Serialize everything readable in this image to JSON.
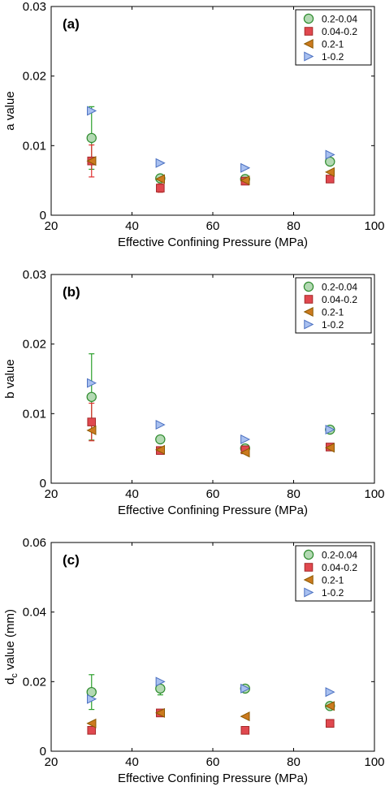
{
  "legend_items": [
    "0.2-0.04",
    "0.04-0.2",
    "0.2-1",
    "1-0.2"
  ],
  "series_styles": [
    {
      "marker": "circle",
      "fill": "#b3d9b3",
      "stroke": "#2e8b2e",
      "error_color": "#2ca02c"
    },
    {
      "marker": "square",
      "fill": "#e0484f",
      "stroke": "#a52a2a",
      "error_color": "#e03030"
    },
    {
      "marker": "triangle-left",
      "fill": "#cc7a1f",
      "stroke": "#8b5a00",
      "error_color": "#cc7a1f"
    },
    {
      "marker": "triangle-right",
      "fill": "#a8c0f0",
      "stroke": "#4a6fc0",
      "error_color": "#4a6fc0"
    }
  ],
  "chart_data": [
    {
      "type": "scatter",
      "panel_label": "(a)",
      "xlabel": "Effective Confining Pressure (MPa)",
      "ylabel": "a value",
      "xlim": [
        20,
        100
      ],
      "ylim": [
        0,
        0.03
      ],
      "xticks": [
        "20",
        "40",
        "60",
        "80",
        "100"
      ],
      "yticks": [
        "0",
        "0.01",
        "0.02",
        "0.03"
      ],
      "legend_position": "top-right",
      "series": [
        {
          "name": "0.2-0.04",
          "x": [
            30,
            47,
            68,
            89
          ],
          "y": [
            0.0111,
            0.0053,
            0.0052,
            0.0077
          ],
          "err": [
            0.0045,
            0,
            0,
            0
          ]
        },
        {
          "name": "0.04-0.2",
          "x": [
            30,
            47,
            68,
            89
          ],
          "y": [
            0.0078,
            0.0039,
            0.0049,
            0.0052
          ],
          "err": [
            0.0023,
            0.0006,
            0,
            0
          ]
        },
        {
          "name": "0.2-1",
          "x": [
            30,
            47,
            68,
            89
          ],
          "y": [
            0.0078,
            0.0052,
            0.005,
            0.0062
          ],
          "err": [
            0,
            0,
            0,
            0
          ]
        },
        {
          "name": "1-0.2",
          "x": [
            30,
            47,
            68,
            89
          ],
          "y": [
            0.015,
            0.0075,
            0.0068,
            0.0087
          ],
          "err": [
            0,
            0,
            0,
            0
          ]
        }
      ]
    },
    {
      "type": "scatter",
      "panel_label": "(b)",
      "xlabel": "Effective Confining Pressure (MPa)",
      "ylabel": "b value",
      "xlim": [
        20,
        100
      ],
      "ylim": [
        0,
        0.03
      ],
      "xticks": [
        "20",
        "40",
        "60",
        "80",
        "100"
      ],
      "yticks": [
        "0",
        "0.01",
        "0.02",
        "0.03"
      ],
      "legend_position": "top-right",
      "series": [
        {
          "name": "0.2-0.04",
          "x": [
            30,
            47,
            68,
            89
          ],
          "y": [
            0.0124,
            0.0063,
            0.005,
            0.0077
          ],
          "err": [
            0.0062,
            0,
            0,
            0
          ]
        },
        {
          "name": "0.04-0.2",
          "x": [
            30,
            47,
            68,
            89
          ],
          "y": [
            0.0088,
            0.0047,
            0.0048,
            0.0052
          ],
          "err": [
            0.0027,
            0,
            0,
            0
          ]
        },
        {
          "name": "0.2-1",
          "x": [
            30,
            47,
            68,
            89
          ],
          "y": [
            0.0076,
            0.0048,
            0.0044,
            0.0051
          ],
          "err": [
            0,
            0,
            0,
            0
          ]
        },
        {
          "name": "1-0.2",
          "x": [
            30,
            47,
            68,
            89
          ],
          "y": [
            0.0144,
            0.0084,
            0.0063,
            0.0077
          ],
          "err": [
            0,
            0,
            0,
            0
          ]
        }
      ]
    },
    {
      "type": "scatter",
      "panel_label": "(c)",
      "xlabel": "Effective Confining Pressure (MPa)",
      "ylabel": "d",
      "ylabel_sub": "c",
      "ylabel_rest": " value (mm)",
      "xlim": [
        20,
        100
      ],
      "ylim": [
        0,
        0.06
      ],
      "xticks": [
        "20",
        "40",
        "60",
        "80",
        "100"
      ],
      "yticks": [
        "0",
        "0.02",
        "0.04",
        "0.06"
      ],
      "legend_position": "top-right",
      "series": [
        {
          "name": "0.2-0.04",
          "x": [
            30,
            47,
            68,
            89
          ],
          "y": [
            0.017,
            0.018,
            0.018,
            0.013
          ],
          "err": [
            0.005,
            0.0018,
            0,
            0
          ]
        },
        {
          "name": "0.04-0.2",
          "x": [
            30,
            47,
            68,
            89
          ],
          "y": [
            0.006,
            0.011,
            0.006,
            0.008
          ],
          "err": [
            0,
            0,
            0,
            0
          ]
        },
        {
          "name": "0.2-1",
          "x": [
            30,
            47,
            68,
            89
          ],
          "y": [
            0.008,
            0.011,
            0.01,
            0.013
          ],
          "err": [
            0,
            0,
            0,
            0
          ]
        },
        {
          "name": "1-0.2",
          "x": [
            30,
            47,
            68,
            89
          ],
          "y": [
            0.015,
            0.02,
            0.018,
            0.017
          ],
          "err": [
            0,
            0,
            0,
            0
          ]
        }
      ]
    }
  ]
}
